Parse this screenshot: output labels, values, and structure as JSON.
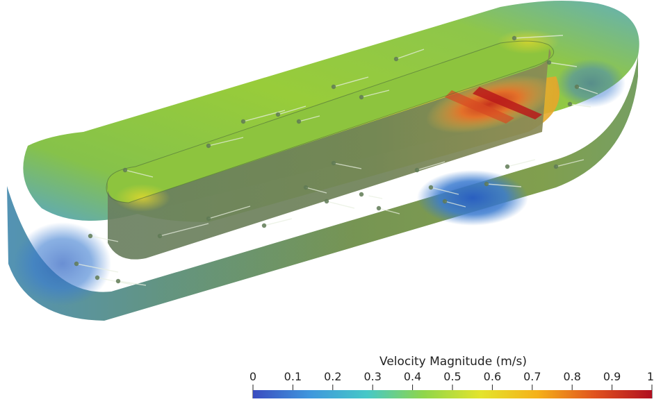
{
  "chart_data": {
    "type": "heatmap",
    "colorbar": {
      "title": "Velocity Magnitude (m/s)",
      "range": [
        0,
        1
      ],
      "ticks": [
        0,
        0.1,
        0.2,
        0.3,
        0.4,
        0.5,
        0.6,
        0.7,
        0.8,
        0.9,
        1
      ],
      "tick_labels": [
        "0",
        "0.1",
        "0.2",
        "0.3",
        "0.4",
        "0.5",
        "0.6",
        "0.7",
        "0.8",
        "0.9",
        "1"
      ],
      "colormap": "jet",
      "colormap_stops": [
        "#3a4cc0",
        "#3f97dd",
        "#46c8c7",
        "#8fd64a",
        "#e4e42c",
        "#f5b019",
        "#e0521e",
        "#b00f20"
      ]
    },
    "scene": {
      "object": "raceway channel",
      "dominant_color": "#8fbf3a",
      "high_velocity_color": "#d8452a",
      "low_velocity_color": "#2f72c8"
    }
  }
}
